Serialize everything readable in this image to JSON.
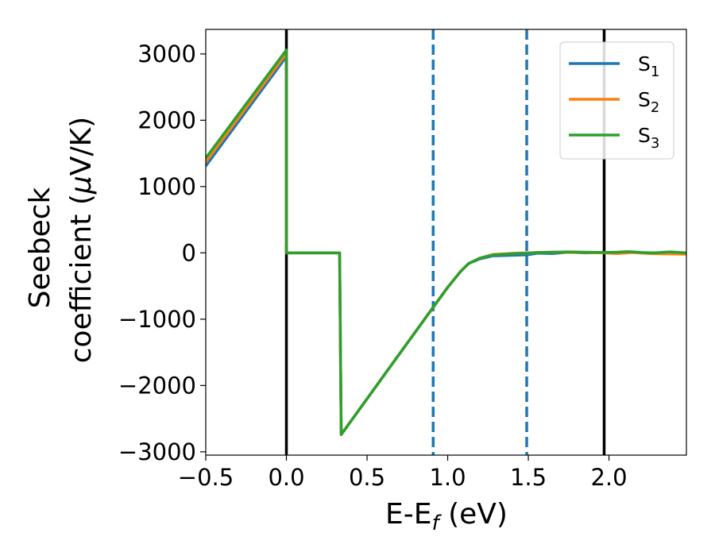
{
  "chart_data": {
    "type": "line",
    "title": "",
    "xlabel": {
      "main": "E-E",
      "sub": "f",
      "unit": " (eV)"
    },
    "ylabel": {
      "line1": "Seebeck",
      "line2": "coefficient  (",
      "mu": "μ",
      "line2_end": "V/K)"
    },
    "xlim": [
      -0.5,
      2.48
    ],
    "ylim": [
      -3050,
      3370
    ],
    "xticks": [
      -0.5,
      0.0,
      0.5,
      1.0,
      1.5,
      2.0
    ],
    "xtick_labels": [
      "−0.5",
      "0.0",
      "0.5",
      "1.0",
      "1.5",
      "2.0"
    ],
    "yticks": [
      -3000,
      -2000,
      -1000,
      0,
      1000,
      2000,
      3000
    ],
    "ytick_labels": [
      "−3000",
      "−2000",
      "−1000",
      "0",
      "1000",
      "2000",
      "3000"
    ],
    "vlines": [
      {
        "x": 0.0,
        "style": "solid",
        "color": "#000000"
      },
      {
        "x": 1.97,
        "style": "solid",
        "color": "#000000"
      },
      {
        "x": 0.91,
        "style": "dashed",
        "color": "#1f77b4"
      },
      {
        "x": 1.49,
        "style": "dashed",
        "color": "#1f77b4"
      }
    ],
    "legend": {
      "position": "top-right"
    },
    "series": [
      {
        "name": "S",
        "sub": "1",
        "color": "#1f77b4",
        "points": [
          [
            -0.5,
            1310
          ],
          [
            0.0,
            2960
          ],
          [
            0.0,
            0
          ],
          [
            0.33,
            0
          ],
          [
            0.34,
            -2740
          ],
          [
            0.91,
            -820
          ],
          [
            1.0,
            -520
          ],
          [
            1.08,
            -280
          ],
          [
            1.13,
            -160
          ],
          [
            1.2,
            -90
          ],
          [
            1.28,
            -45
          ],
          [
            1.35,
            -40
          ],
          [
            1.42,
            -35
          ],
          [
            1.49,
            -30
          ],
          [
            1.56,
            -5
          ],
          [
            1.65,
            -10
          ],
          [
            1.75,
            10
          ],
          [
            1.85,
            0
          ],
          [
            1.97,
            5
          ],
          [
            2.05,
            0
          ],
          [
            2.15,
            10
          ],
          [
            2.25,
            -5
          ],
          [
            2.35,
            5
          ],
          [
            2.48,
            0
          ]
        ]
      },
      {
        "name": "S",
        "sub": "2",
        "color": "#ff7f0e",
        "points": [
          [
            -0.5,
            1370
          ],
          [
            0.0,
            3010
          ],
          [
            0.0,
            0
          ],
          [
            0.33,
            0
          ],
          [
            0.34,
            -2740
          ],
          [
            0.91,
            -820
          ],
          [
            1.0,
            -520
          ],
          [
            1.08,
            -280
          ],
          [
            1.13,
            -160
          ],
          [
            1.2,
            -80
          ],
          [
            1.28,
            -25
          ],
          [
            1.35,
            -15
          ],
          [
            1.42,
            -5
          ],
          [
            1.49,
            0
          ],
          [
            1.56,
            5
          ],
          [
            1.65,
            10
          ],
          [
            1.75,
            5
          ],
          [
            1.85,
            5
          ],
          [
            1.97,
            0
          ],
          [
            2.05,
            -10
          ],
          [
            2.15,
            5
          ],
          [
            2.25,
            -10
          ],
          [
            2.35,
            -15
          ],
          [
            2.48,
            -20
          ]
        ]
      },
      {
        "name": "S",
        "sub": "3",
        "color": "#2ca02c",
        "points": [
          [
            -0.5,
            1430
          ],
          [
            0.0,
            3060
          ],
          [
            0.0,
            0
          ],
          [
            0.33,
            0
          ],
          [
            0.34,
            -2740
          ],
          [
            0.91,
            -820
          ],
          [
            1.0,
            -520
          ],
          [
            1.08,
            -280
          ],
          [
            1.13,
            -160
          ],
          [
            1.2,
            -80
          ],
          [
            1.28,
            -30
          ],
          [
            1.35,
            -20
          ],
          [
            1.42,
            -10
          ],
          [
            1.49,
            -5
          ],
          [
            1.56,
            5
          ],
          [
            1.65,
            10
          ],
          [
            1.75,
            15
          ],
          [
            1.85,
            10
          ],
          [
            1.97,
            5
          ],
          [
            2.05,
            10
          ],
          [
            2.12,
            20
          ],
          [
            2.2,
            5
          ],
          [
            2.28,
            0
          ],
          [
            2.38,
            15
          ],
          [
            2.48,
            0
          ]
        ]
      }
    ]
  }
}
